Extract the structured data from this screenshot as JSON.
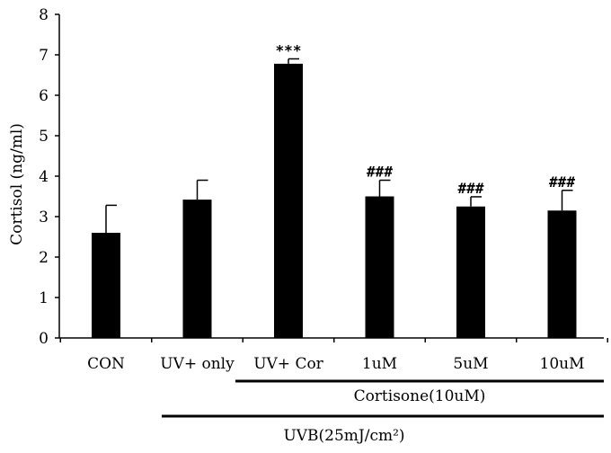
{
  "chart_data": {
    "type": "bar",
    "title": "",
    "xlabel": "",
    "ylabel": "Cortisol (ng/ml)",
    "ylim": [
      0,
      8
    ],
    "yticks": [
      0,
      1,
      2,
      3,
      4,
      5,
      6,
      7,
      8
    ],
    "grid": false,
    "categories": [
      "CON",
      "UV+ only",
      "UV+ Cor",
      "1uM",
      "5uM",
      "10uM"
    ],
    "values": [
      2.6,
      3.42,
      6.78,
      3.5,
      3.25,
      3.15
    ],
    "errors": [
      0.68,
      0.48,
      0.12,
      0.4,
      0.24,
      0.5
    ],
    "significance": [
      "",
      "",
      "***",
      "###",
      "###",
      "###"
    ],
    "bar_color": "#000000",
    "groups": [
      {
        "label": "Cortisone(10uM)",
        "from_category": 2,
        "to_category": 5
      },
      {
        "label": "UVB(25mJ/cm²)",
        "from_category": 1,
        "to_category": 5
      }
    ]
  }
}
